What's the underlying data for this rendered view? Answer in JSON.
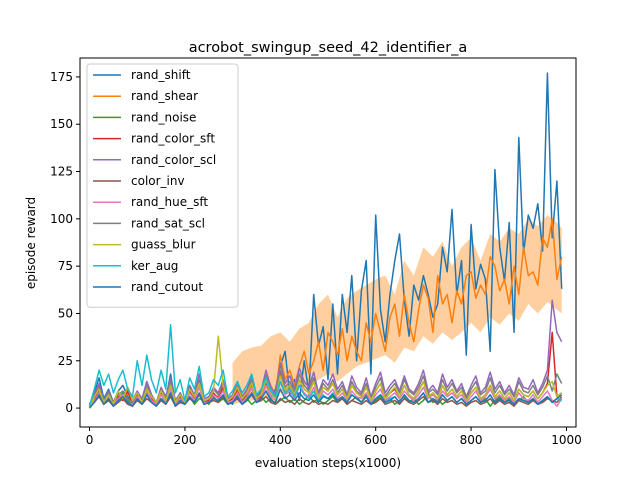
{
  "chart_data": {
    "type": "line",
    "title": "acrobot_swingup_seed_42_identifier_a",
    "xlabel": "evaluation steps(x1000)",
    "ylabel": "episode reward",
    "xlim": [
      -20,
      1020
    ],
    "ylim": [
      -10,
      185
    ],
    "xticks": [
      0,
      200,
      400,
      600,
      800,
      1000
    ],
    "yticks": [
      0,
      25,
      50,
      75,
      100,
      125,
      150,
      175
    ],
    "grid": false,
    "legend_position": "upper-left",
    "x": [
      0,
      10,
      20,
      30,
      40,
      50,
      60,
      70,
      80,
      90,
      100,
      110,
      120,
      130,
      140,
      150,
      160,
      170,
      180,
      190,
      200,
      210,
      220,
      230,
      240,
      250,
      260,
      270,
      280,
      290,
      300,
      310,
      320,
      330,
      340,
      350,
      360,
      370,
      380,
      390,
      400,
      410,
      420,
      430,
      440,
      450,
      460,
      470,
      480,
      490,
      500,
      510,
      520,
      530,
      540,
      550,
      560,
      570,
      580,
      590,
      600,
      610,
      620,
      630,
      640,
      650,
      660,
      670,
      680,
      690,
      700,
      710,
      720,
      730,
      740,
      750,
      760,
      770,
      780,
      790,
      800,
      810,
      820,
      830,
      840,
      850,
      860,
      870,
      880,
      890,
      900,
      910,
      920,
      930,
      940,
      950,
      960,
      970,
      980,
      990
    ],
    "series": [
      {
        "name": "rand_shift",
        "color": "#1f77b4",
        "values": [
          1,
          8,
          16,
          5,
          10,
          3,
          9,
          12,
          6,
          3,
          8,
          4,
          14,
          7,
          2,
          10,
          5,
          18,
          3,
          8,
          2,
          12,
          6,
          15,
          4,
          3,
          10,
          8,
          14,
          4,
          2,
          11,
          6,
          5,
          12,
          3,
          7,
          13,
          5,
          10,
          22,
          30,
          7,
          15,
          4,
          25,
          8,
          60,
          33,
          43,
          15,
          55,
          18,
          60,
          40,
          70,
          25,
          62,
          78,
          18,
          102,
          52,
          35,
          60,
          78,
          92,
          57,
          38,
          65,
          57,
          70,
          60,
          48,
          55,
          85,
          72,
          105,
          60,
          78,
          28,
          97,
          63,
          76,
          68,
          30,
          126,
          85,
          67,
          98,
          40,
          143,
          82,
          102,
          95,
          108,
          83,
          177,
          90,
          120,
          63
        ]
      },
      {
        "name": "rand_shear",
        "color": "#ff7f0e",
        "values": [
          0,
          5,
          12,
          3,
          6,
          2,
          7,
          4,
          8,
          3,
          6,
          2,
          9,
          5,
          3,
          7,
          4,
          10,
          2,
          6,
          3,
          8,
          5,
          11,
          3,
          4,
          7,
          6,
          9,
          3,
          5,
          8,
          4,
          7,
          10,
          5,
          8,
          18,
          12,
          7,
          28,
          15,
          20,
          12,
          22,
          30,
          18,
          25,
          35,
          20,
          40,
          35,
          28,
          42,
          25,
          38,
          30,
          25,
          45,
          35,
          50,
          40,
          30,
          48,
          55,
          38,
          60,
          45,
          35,
          52,
          65,
          58,
          40,
          70,
          55,
          60,
          45,
          62,
          55,
          70,
          72,
          58,
          65,
          60,
          80,
          75,
          62,
          68,
          55,
          75,
          60,
          85,
          70,
          72,
          65,
          90,
          85,
          100,
          68,
          80
        ]
      },
      {
        "name": "rand_noise",
        "color": "#2ca02c",
        "values": [
          2,
          6,
          9,
          3,
          7,
          2,
          5,
          8,
          4,
          2,
          6,
          3,
          8,
          4,
          2,
          5,
          3,
          7,
          2,
          4,
          3,
          6,
          2,
          5,
          4,
          2,
          6,
          3,
          5,
          2,
          4,
          7,
          3,
          5,
          2,
          4,
          6,
          3,
          5,
          2,
          4,
          6,
          3,
          5,
          2,
          4,
          7,
          3,
          5,
          2,
          4,
          6,
          3,
          5,
          2,
          4,
          6,
          3,
          7,
          2,
          4,
          6,
          3,
          5,
          2,
          4,
          6,
          3,
          5,
          2,
          4,
          8,
          3,
          5,
          2,
          4,
          6,
          3,
          5,
          2,
          4,
          6,
          3,
          5,
          1,
          4,
          6,
          3,
          5,
          2,
          4,
          6,
          3,
          5,
          2,
          4,
          6,
          3,
          5,
          4
        ]
      },
      {
        "name": "rand_color_sft",
        "color": "#d62728",
        "values": [
          1,
          5,
          10,
          2,
          8,
          3,
          6,
          4,
          9,
          2,
          7,
          3,
          10,
          5,
          2,
          8,
          4,
          12,
          3,
          6,
          2,
          9,
          5,
          13,
          3,
          4,
          8,
          5,
          11,
          3,
          5,
          10,
          4,
          7,
          13,
          4,
          6,
          15,
          8,
          5,
          18,
          9,
          12,
          7,
          15,
          10,
          8,
          14,
          6,
          11,
          9,
          13,
          7,
          10,
          5,
          12,
          8,
          6,
          11,
          4,
          9,
          13,
          5,
          8,
          10,
          6,
          12,
          7,
          5,
          9,
          14,
          6,
          8,
          5,
          12,
          7,
          10,
          6,
          9,
          4,
          8,
          11,
          5,
          7,
          12,
          6,
          9,
          5,
          8,
          4,
          10,
          7,
          6,
          9,
          5,
          8,
          13,
          40,
          6,
          8
        ]
      },
      {
        "name": "rand_color_scl",
        "color": "#9467bd",
        "values": [
          2,
          7,
          13,
          4,
          9,
          3,
          8,
          6,
          11,
          4,
          9,
          5,
          14,
          7,
          3,
          11,
          6,
          16,
          4,
          8,
          3,
          12,
          7,
          18,
          5,
          6,
          11,
          8,
          15,
          5,
          7,
          14,
          6,
          10,
          17,
          6,
          9,
          20,
          11,
          7,
          24,
          13,
          17,
          10,
          21,
          14,
          11,
          19,
          8,
          15,
          12,
          18,
          10,
          14,
          7,
          17,
          11,
          8,
          16,
          6,
          13,
          19,
          8,
          12,
          15,
          9,
          17,
          10,
          8,
          13,
          20,
          9,
          12,
          8,
          18,
          11,
          15,
          9,
          13,
          6,
          12,
          17,
          8,
          11,
          19,
          10,
          14,
          8,
          12,
          7,
          16,
          11,
          10,
          15,
          8,
          13,
          20,
          57,
          40,
          35
        ]
      },
      {
        "name": "color_inv",
        "color": "#8c564b",
        "values": [
          1,
          3,
          6,
          2,
          4,
          1,
          3,
          5,
          2,
          1,
          4,
          2,
          5,
          3,
          1,
          4,
          2,
          6,
          1,
          3,
          2,
          5,
          3,
          7,
          2,
          3,
          4,
          3,
          6,
          2,
          3,
          5,
          2,
          4,
          7,
          3,
          4,
          6,
          3,
          2,
          5,
          3,
          4,
          2,
          5,
          3,
          2,
          4,
          2,
          3,
          2,
          4,
          3,
          5,
          2,
          4,
          3,
          2,
          4,
          2,
          3,
          5,
          2,
          3,
          4,
          2,
          5,
          3,
          2,
          4,
          6,
          3,
          4,
          2,
          5,
          3,
          4,
          2,
          3,
          1,
          3,
          4,
          2,
          3,
          5,
          2,
          4,
          2,
          3,
          1,
          4,
          3,
          2,
          4,
          2,
          3,
          5,
          4,
          3,
          6
        ]
      },
      {
        "name": "rand_hue_sft",
        "color": "#e377c2",
        "values": [
          1,
          4,
          8,
          3,
          6,
          2,
          5,
          7,
          3,
          2,
          6,
          3,
          9,
          4,
          2,
          7,
          3,
          10,
          2,
          5,
          2,
          8,
          4,
          11,
          3,
          3,
          7,
          5,
          9,
          3,
          4,
          8,
          3,
          6,
          11,
          4,
          5,
          12,
          6,
          4,
          14,
          7,
          9,
          5,
          12,
          8,
          6,
          11,
          4,
          9,
          7,
          10,
          5,
          8,
          4,
          9,
          6,
          5,
          8,
          3,
          7,
          10,
          4,
          6,
          8,
          5,
          9,
          6,
          4,
          7,
          11,
          5,
          7,
          4,
          9,
          6,
          8,
          5,
          7,
          3,
          6,
          9,
          4,
          6,
          10,
          5,
          7,
          4,
          6,
          3,
          8,
          5,
          4,
          7,
          3,
          6,
          9,
          4,
          1,
          5
        ]
      },
      {
        "name": "rand_sat_scl",
        "color": "#7f7f7f",
        "values": [
          2,
          6,
          11,
          4,
          8,
          3,
          7,
          9,
          5,
          3,
          8,
          4,
          12,
          6,
          3,
          10,
          5,
          14,
          3,
          7,
          3,
          11,
          6,
          15,
          4,
          5,
          10,
          7,
          13,
          4,
          6,
          12,
          5,
          9,
          15,
          6,
          8,
          17,
          9,
          6,
          20,
          11,
          14,
          8,
          18,
          12,
          9,
          16,
          7,
          13,
          10,
          15,
          8,
          12,
          6,
          14,
          9,
          7,
          13,
          5,
          11,
          16,
          6,
          10,
          13,
          8,
          15,
          9,
          7,
          11,
          17,
          8,
          10,
          7,
          15,
          9,
          13,
          8,
          11,
          5,
          10,
          14,
          7,
          9,
          16,
          8,
          12,
          7,
          10,
          6,
          14,
          9,
          8,
          12,
          7,
          11,
          17,
          9,
          18,
          13
        ]
      },
      {
        "name": "guass_blur",
        "color": "#bcbd22",
        "values": [
          0,
          6,
          10,
          3,
          7,
          2,
          9,
          5,
          11,
          4,
          8,
          3,
          10,
          6,
          3,
          9,
          4,
          12,
          3,
          7,
          3,
          10,
          6,
          13,
          4,
          5,
          9,
          38,
          12,
          4,
          6,
          11,
          5,
          8,
          13,
          5,
          7,
          15,
          8,
          5,
          17,
          9,
          12,
          7,
          15,
          10,
          8,
          14,
          6,
          11,
          9,
          13,
          7,
          10,
          5,
          12,
          8,
          6,
          11,
          4,
          9,
          13,
          5,
          8,
          11,
          6,
          12,
          7,
          5,
          9,
          14,
          6,
          8,
          5,
          12,
          7,
          10,
          6,
          9,
          4,
          8,
          11,
          5,
          7,
          12,
          6,
          9,
          5,
          8,
          4,
          10,
          7,
          6,
          9,
          5,
          8,
          12,
          14,
          6,
          8
        ]
      },
      {
        "name": "ker_aug",
        "color": "#17becf",
        "values": [
          1,
          10,
          20,
          12,
          18,
          8,
          15,
          20,
          10,
          6,
          25,
          12,
          28,
          15,
          8,
          20,
          10,
          44,
          8,
          15,
          4,
          16,
          10,
          22,
          6,
          8,
          15,
          12,
          20,
          6,
          9,
          14,
          8,
          12,
          18,
          7,
          10,
          16,
          9,
          6,
          14,
          8,
          10,
          6,
          12,
          7,
          5,
          9,
          4,
          7,
          5,
          8,
          4,
          6,
          3,
          7,
          5,
          3,
          6,
          2,
          5,
          7,
          3,
          5,
          6,
          3,
          7,
          4,
          3,
          5,
          8,
          3,
          5,
          3,
          7,
          4,
          6,
          3,
          5,
          2,
          4,
          6,
          3,
          4,
          7,
          3,
          5,
          3,
          4,
          2,
          5,
          4,
          3,
          5,
          2,
          4,
          6,
          3,
          5,
          4
        ]
      },
      {
        "name": "rand_cutout",
        "color": "#1f77b4",
        "values": [
          0,
          3,
          7,
          2,
          5,
          1,
          4,
          6,
          3,
          1,
          5,
          2,
          7,
          3,
          1,
          5,
          2,
          8,
          1,
          4,
          2,
          6,
          3,
          8,
          2,
          3,
          5,
          4,
          7,
          2,
          3,
          6,
          2,
          4,
          8,
          3,
          5,
          9,
          4,
          3,
          10,
          5,
          7,
          4,
          8,
          5,
          4,
          7,
          3,
          6,
          5,
          7,
          4,
          6,
          3,
          7,
          5,
          3,
          6,
          2,
          5,
          7,
          3,
          4,
          6,
          3,
          7,
          4,
          3,
          5,
          8,
          3,
          5,
          3,
          7,
          4,
          6,
          3,
          5,
          2,
          4,
          6,
          3,
          4,
          7,
          3,
          5,
          3,
          4,
          2,
          5,
          4,
          3,
          5,
          2,
          4,
          6,
          3,
          5,
          7
        ]
      }
    ],
    "band": {
      "series": "rand_shear",
      "color": "#ffbb78",
      "x": [
        300,
        320,
        340,
        360,
        380,
        400,
        420,
        440,
        460,
        480,
        500,
        520,
        540,
        560,
        580,
        600,
        620,
        640,
        660,
        680,
        700,
        720,
        740,
        760,
        780,
        800,
        820,
        840,
        860,
        880,
        900,
        920,
        940,
        960,
        980,
        990
      ],
      "upper": [
        24,
        30,
        32,
        33,
        38,
        40,
        35,
        42,
        45,
        55,
        60,
        48,
        58,
        62,
        65,
        68,
        70,
        60,
        78,
        70,
        85,
        80,
        88,
        75,
        85,
        90,
        78,
        92,
        88,
        95,
        92,
        100,
        96,
        102,
        98,
        95
      ],
      "lower": [
        2,
        3,
        4,
        5,
        6,
        8,
        7,
        10,
        12,
        15,
        18,
        14,
        18,
        22,
        24,
        26,
        28,
        24,
        32,
        30,
        38,
        34,
        40,
        36,
        40,
        45,
        40,
        48,
        44,
        50,
        46,
        55,
        50,
        56,
        52,
        50
      ]
    }
  }
}
